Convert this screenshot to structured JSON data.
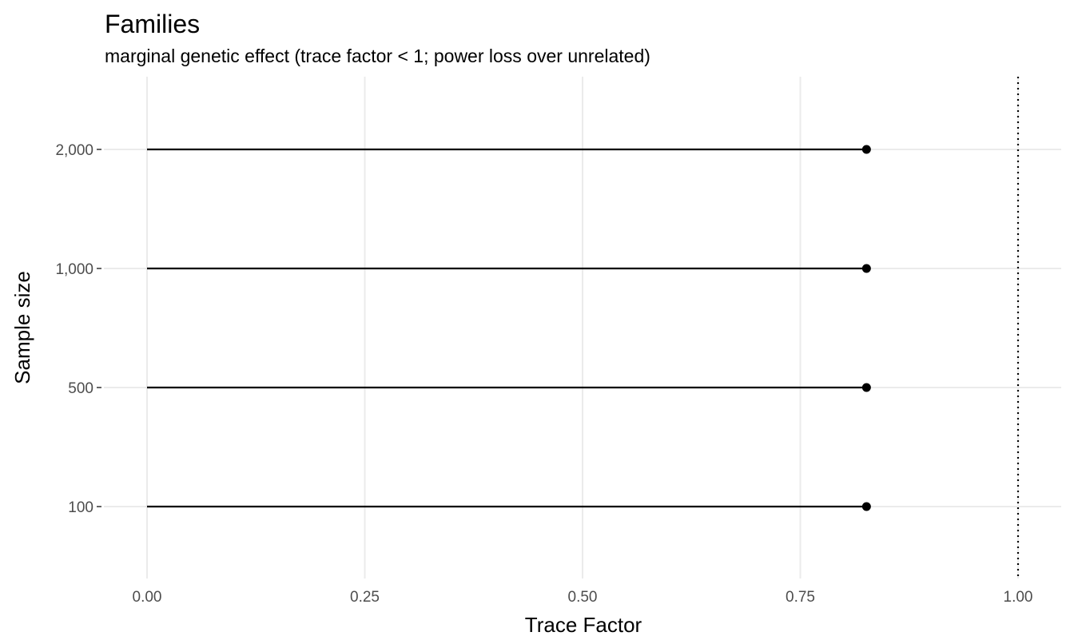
{
  "chart_data": {
    "type": "lollipop",
    "title": "Families",
    "subtitle": "marginal genetic effect (trace factor < 1; power loss over unrelated)",
    "xlabel": "Trace Factor",
    "ylabel": "Sample size",
    "xlim": [
      0,
      1.05
    ],
    "x_ticks": [
      0,
      0.25,
      0.5,
      0.75,
      1.0
    ],
    "x_tick_labels": [
      "0.00",
      "0.25",
      "0.50",
      "0.75",
      "1.00"
    ],
    "categories": [
      "100",
      "500",
      "1,000",
      "2,000"
    ],
    "values": [
      0.826,
      0.826,
      0.826,
      0.826
    ],
    "reference_line": {
      "x": 1.0,
      "style": "dotted"
    },
    "grid": true,
    "legend": "none"
  }
}
